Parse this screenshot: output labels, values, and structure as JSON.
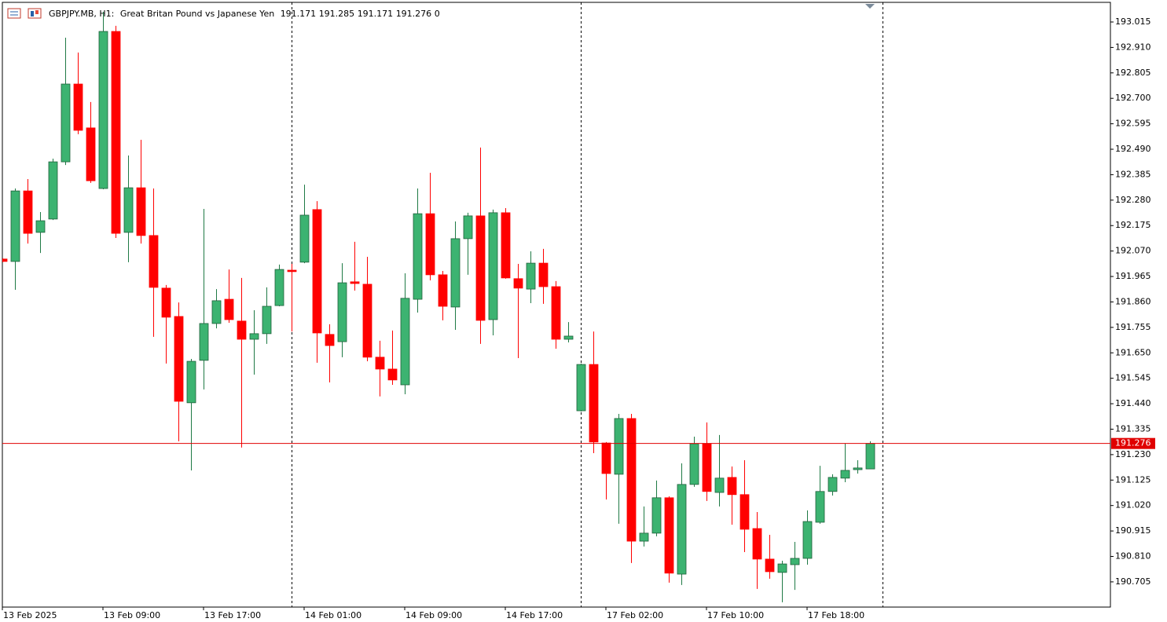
{
  "chart_data": {
    "type": "candlestick",
    "title": "GBPJPY.MB, H1:",
    "subtitle": "Great Britan Pound vs Japanese Yen",
    "tick_volume": 0,
    "categories": [
      "13 Feb 2025",
      null,
      null,
      null,
      null,
      null,
      null,
      null,
      "13 Feb 09:00",
      null,
      null,
      null,
      null,
      null,
      null,
      null,
      "13 Feb 17:00",
      null,
      null,
      null,
      null,
      null,
      null,
      null,
      "14 Feb 01:00",
      null,
      null,
      null,
      null,
      null,
      null,
      null,
      "14 Feb 09:00",
      null,
      null,
      null,
      null,
      null,
      null,
      null,
      "14 Feb 17:00",
      null,
      null,
      null,
      null,
      null,
      null,
      null,
      "17 Feb 02:00",
      null,
      null,
      null,
      null,
      null,
      null,
      null,
      "17 Feb 10:00",
      null,
      null,
      null,
      null,
      null,
      null,
      null,
      "17 Feb 18:00",
      null,
      null,
      null,
      null,
      null
    ],
    "open": [
      192.037,
      192.027,
      192.318,
      192.147,
      192.202,
      192.438,
      192.759,
      192.578,
      192.328,
      192.976,
      192.147,
      192.331,
      192.134,
      191.917,
      191.8,
      191.444,
      191.619,
      191.771,
      191.871,
      191.781,
      191.706,
      191.729,
      191.845,
      191.991,
      192.024,
      192.241,
      191.726,
      191.696,
      191.943,
      191.933,
      191.632,
      191.583,
      191.518,
      191.871,
      192.224,
      191.972,
      191.839,
      192.121,
      192.215,
      191.787,
      192.228,
      191.956,
      191.913,
      192.02,
      191.923,
      191.706,
      191.411,
      191.602,
      191.278,
      191.149,
      191.379,
      190.873,
      190.906,
      191.052,
      190.737,
      191.107,
      191.275,
      191.074,
      191.136,
      191.065,
      190.925,
      190.799,
      190.744,
      190.776,
      190.802,
      190.951,
      191.078,
      191.133,
      191.168,
      191.171
    ],
    "high": [
      192.04,
      192.328,
      192.367,
      192.231,
      192.451,
      192.95,
      192.889,
      192.685,
      193.057,
      192.999,
      192.464,
      192.529,
      192.328,
      191.93,
      191.858,
      191.625,
      192.244,
      191.913,
      191.994,
      191.959,
      191.826,
      191.92,
      192.014,
      192.017,
      192.344,
      192.276,
      191.768,
      192.02,
      192.108,
      192.046,
      191.7,
      191.742,
      191.978,
      192.328,
      192.393,
      191.988,
      192.192,
      192.228,
      192.497,
      192.241,
      192.247,
      192.017,
      192.069,
      192.079,
      191.946,
      191.777,
      191.606,
      191.738,
      191.282,
      191.398,
      191.398,
      191.016,
      191.123,
      191.058,
      191.194,
      191.304,
      191.363,
      191.311,
      191.181,
      191.207,
      190.993,
      190.899,
      190.792,
      190.87,
      191.0,
      191.184,
      191.149,
      191.275,
      191.207,
      191.285
    ],
    "low": [
      192.024,
      191.91,
      192.101,
      192.062,
      192.198,
      192.425,
      192.552,
      192.351,
      192.325,
      192.124,
      192.024,
      192.101,
      191.716,
      191.606,
      191.285,
      191.165,
      191.499,
      191.751,
      191.774,
      191.259,
      191.56,
      191.687,
      191.842,
      191.738,
      192.02,
      191.609,
      191.528,
      191.632,
      191.907,
      191.615,
      191.47,
      191.518,
      191.479,
      191.816,
      191.949,
      191.784,
      191.745,
      191.972,
      191.687,
      191.722,
      191.956,
      191.628,
      191.855,
      191.852,
      191.667,
      191.693,
      191.408,
      191.236,
      191.045,
      190.945,
      190.783,
      190.851,
      190.893,
      190.702,
      190.692,
      191.097,
      191.039,
      191.016,
      190.941,
      190.828,
      190.676,
      190.718,
      190.621,
      190.672,
      190.776,
      190.945,
      191.061,
      191.116,
      191.152,
      191.171
    ],
    "close": [
      192.027,
      192.318,
      192.143,
      192.195,
      192.438,
      192.759,
      192.568,
      192.36,
      192.976,
      192.143,
      192.331,
      192.134,
      191.92,
      191.797,
      191.45,
      191.615,
      191.771,
      191.865,
      191.787,
      191.706,
      191.729,
      191.842,
      191.994,
      191.985,
      192.218,
      191.732,
      191.68,
      191.939,
      191.936,
      191.632,
      191.583,
      191.538,
      191.875,
      192.224,
      191.972,
      191.842,
      192.121,
      192.215,
      191.784,
      192.228,
      191.959,
      191.917,
      192.02,
      191.923,
      191.706,
      191.719,
      191.602,
      191.282,
      191.152,
      191.379,
      190.873,
      190.906,
      191.052,
      190.741,
      191.107,
      191.275,
      191.078,
      191.133,
      191.065,
      190.922,
      190.799,
      190.747,
      190.779,
      190.802,
      190.954,
      191.078,
      191.136,
      191.165,
      191.175,
      191.276
    ],
    "up_color": "#3cb371",
    "down_color": "#ff0000",
    "price_line_color": "#e00000",
    "ylim": [
      190.601,
      193.096
    ],
    "yticks": [
      193.015,
      {
        "value": 192.91,
        "label": "192.910"
      },
      192.805,
      {
        "value": 192.7,
        "label": "192.700"
      },
      192.595,
      {
        "value": 192.49,
        "label": "192.490"
      },
      192.385,
      {
        "value": 192.28,
        "label": "192.280"
      },
      192.175,
      {
        "value": 192.07,
        "label": "192.070"
      },
      191.965,
      {
        "value": 191.86,
        "label": "191.860"
      },
      191.755,
      {
        "value": 191.65,
        "label": "191.650"
      },
      191.545,
      {
        "value": 191.44,
        "label": "191.440"
      },
      191.335,
      {
        "value": 191.23,
        "label": "191.230"
      },
      191.125,
      {
        "value": 191.02,
        "label": "191.020"
      },
      190.915,
      {
        "value": 190.81,
        "label": "190.810"
      },
      190.705
    ]
  }
}
